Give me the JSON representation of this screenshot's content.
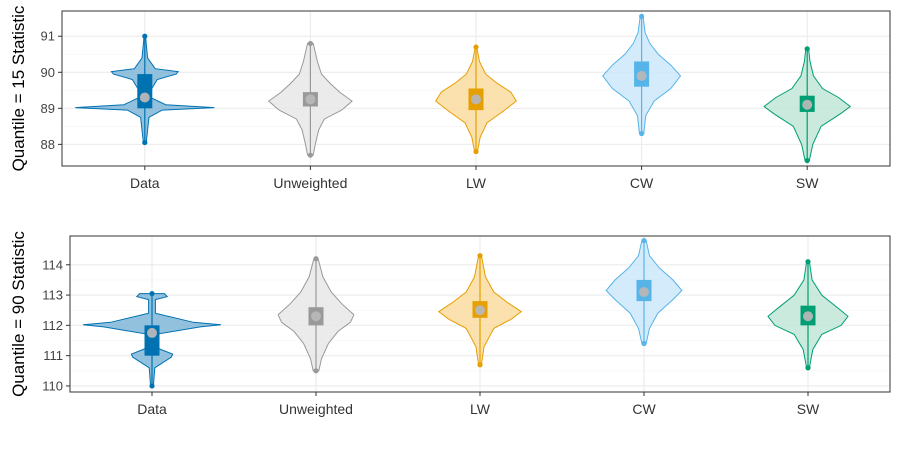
{
  "chart_data": [
    {
      "type": "violin",
      "ylabel": "Quantile = 15 Statistic",
      "ylim": [
        87.4,
        91.7
      ],
      "yticks": [
        88,
        89,
        90,
        91
      ],
      "categories": [
        "Data",
        "Unweighted",
        "LW",
        "CW",
        "SW"
      ],
      "colors": {
        "Data": "#0072B2",
        "Unweighted": "#999999",
        "LW": "#E69F00",
        "CW": "#56B4E9",
        "SW": "#009E73"
      },
      "fills": {
        "Data": "#7fb6d8",
        "Unweighted": "#e8e8e8",
        "LW": "#f9dca0",
        "CW": "#cde8fa",
        "SW": "#bfe6d6"
      },
      "series": [
        {
          "category": "Data",
          "min": 88.05,
          "max": 91.0,
          "q1": 89.0,
          "median": 89.3,
          "q3": 89.95,
          "mean": 89.3,
          "density": [
            [
              88.05,
              0.02
            ],
            [
              88.4,
              0.04
            ],
            [
              88.75,
              0.06
            ],
            [
              88.95,
              0.25
            ],
            [
              89.02,
              1.0
            ],
            [
              89.1,
              0.3
            ],
            [
              89.3,
              0.08
            ],
            [
              89.55,
              0.1
            ],
            [
              89.8,
              0.18
            ],
            [
              89.95,
              0.45
            ],
            [
              90.02,
              0.48
            ],
            [
              90.1,
              0.15
            ],
            [
              90.4,
              0.04
            ],
            [
              91.0,
              0.01
            ]
          ]
        },
        {
          "category": "Unweighted",
          "min": 87.7,
          "max": 90.8,
          "q1": 89.05,
          "median": 89.25,
          "q3": 89.45,
          "mean": 89.25,
          "density": [
            [
              87.7,
              0.04
            ],
            [
              88.0,
              0.07
            ],
            [
              88.4,
              0.12
            ],
            [
              88.7,
              0.2
            ],
            [
              88.95,
              0.45
            ],
            [
              89.2,
              0.6
            ],
            [
              89.45,
              0.42
            ],
            [
              89.7,
              0.28
            ],
            [
              89.95,
              0.16
            ],
            [
              90.3,
              0.1
            ],
            [
              90.8,
              0.04
            ]
          ]
        },
        {
          "category": "LW",
          "min": 87.8,
          "max": 90.7,
          "q1": 88.95,
          "median": 89.25,
          "q3": 89.55,
          "mean": 89.25,
          "density": [
            [
              87.8,
              0.02
            ],
            [
              88.2,
              0.06
            ],
            [
              88.6,
              0.16
            ],
            [
              88.9,
              0.38
            ],
            [
              89.2,
              0.58
            ],
            [
              89.45,
              0.5
            ],
            [
              89.7,
              0.3
            ],
            [
              89.95,
              0.14
            ],
            [
              90.3,
              0.05
            ],
            [
              90.7,
              0.01
            ]
          ]
        },
        {
          "category": "CW",
          "min": 88.3,
          "max": 91.55,
          "q1": 89.6,
          "median": 89.95,
          "q3": 90.3,
          "mean": 89.9,
          "density": [
            [
              88.3,
              0.03
            ],
            [
              88.8,
              0.06
            ],
            [
              89.2,
              0.18
            ],
            [
              89.55,
              0.42
            ],
            [
              89.9,
              0.56
            ],
            [
              90.2,
              0.42
            ],
            [
              90.5,
              0.24
            ],
            [
              90.8,
              0.12
            ],
            [
              91.1,
              0.05
            ],
            [
              91.55,
              0.02
            ]
          ]
        },
        {
          "category": "SW",
          "min": 87.55,
          "max": 90.65,
          "q1": 88.9,
          "median": 89.1,
          "q3": 89.35,
          "mean": 89.1,
          "density": [
            [
              87.55,
              0.03
            ],
            [
              88.0,
              0.08
            ],
            [
              88.5,
              0.2
            ],
            [
              88.85,
              0.48
            ],
            [
              89.05,
              0.62
            ],
            [
              89.3,
              0.45
            ],
            [
              89.55,
              0.22
            ],
            [
              89.9,
              0.09
            ],
            [
              90.3,
              0.04
            ],
            [
              90.65,
              0.02
            ]
          ]
        }
      ]
    },
    {
      "type": "violin",
      "ylabel": "Quantile = 90 Statistic",
      "ylim": [
        109.8,
        114.95
      ],
      "yticks": [
        110,
        111,
        112,
        113,
        114
      ],
      "categories": [
        "Data",
        "Unweighted",
        "LW",
        "CW",
        "SW"
      ],
      "colors": {
        "Data": "#0072B2",
        "Unweighted": "#999999",
        "LW": "#E69F00",
        "CW": "#56B4E9",
        "SW": "#009E73"
      },
      "fills": {
        "Data": "#7fb6d8",
        "Unweighted": "#e8e8e8",
        "LW": "#f9dca0",
        "CW": "#cde8fa",
        "SW": "#bfe6d6"
      },
      "series": [
        {
          "category": "Data",
          "min": 110.0,
          "max": 113.05,
          "q1": 111.0,
          "median": 111.5,
          "q3": 112.0,
          "mean": 111.75,
          "density": [
            [
              110.0,
              0.02
            ],
            [
              110.6,
              0.04
            ],
            [
              110.95,
              0.28
            ],
            [
              111.05,
              0.3
            ],
            [
              111.25,
              0.08
            ],
            [
              111.7,
              0.05
            ],
            [
              111.95,
              0.7
            ],
            [
              112.02,
              1.0
            ],
            [
              112.1,
              0.6
            ],
            [
              112.4,
              0.05
            ],
            [
              112.85,
              0.05
            ],
            [
              112.95,
              0.22
            ],
            [
              113.05,
              0.18
            ]
          ]
        },
        {
          "category": "Unweighted",
          "min": 110.5,
          "max": 114.2,
          "q1": 112.0,
          "median": 112.3,
          "q3": 112.6,
          "mean": 112.3,
          "density": [
            [
              110.5,
              0.04
            ],
            [
              110.9,
              0.08
            ],
            [
              111.4,
              0.18
            ],
            [
              111.8,
              0.32
            ],
            [
              112.1,
              0.5
            ],
            [
              112.35,
              0.55
            ],
            [
              112.7,
              0.38
            ],
            [
              113.1,
              0.22
            ],
            [
              113.6,
              0.1
            ],
            [
              114.2,
              0.03
            ]
          ]
        },
        {
          "category": "LW",
          "min": 110.7,
          "max": 114.3,
          "q1": 112.25,
          "median": 112.5,
          "q3": 112.8,
          "mean": 112.5,
          "density": [
            [
              110.7,
              0.02
            ],
            [
              111.3,
              0.06
            ],
            [
              111.9,
              0.2
            ],
            [
              112.2,
              0.45
            ],
            [
              112.45,
              0.6
            ],
            [
              112.75,
              0.4
            ],
            [
              113.1,
              0.2
            ],
            [
              113.6,
              0.08
            ],
            [
              114.3,
              0.02
            ]
          ]
        },
        {
          "category": "CW",
          "min": 111.4,
          "max": 114.8,
          "q1": 112.8,
          "median": 113.15,
          "q3": 113.5,
          "mean": 113.1,
          "density": [
            [
              111.4,
              0.03
            ],
            [
              111.9,
              0.08
            ],
            [
              112.4,
              0.2
            ],
            [
              112.85,
              0.42
            ],
            [
              113.15,
              0.55
            ],
            [
              113.5,
              0.42
            ],
            [
              113.9,
              0.22
            ],
            [
              114.3,
              0.08
            ],
            [
              114.8,
              0.03
            ]
          ]
        },
        {
          "category": "SW",
          "min": 110.6,
          "max": 114.1,
          "q1": 112.0,
          "median": 112.3,
          "q3": 112.65,
          "mean": 112.3,
          "density": [
            [
              110.6,
              0.02
            ],
            [
              111.2,
              0.07
            ],
            [
              111.7,
              0.2
            ],
            [
              112.0,
              0.48
            ],
            [
              112.3,
              0.58
            ],
            [
              112.6,
              0.42
            ],
            [
              113.0,
              0.2
            ],
            [
              113.5,
              0.06
            ],
            [
              114.1,
              0.02
            ]
          ]
        }
      ]
    }
  ]
}
